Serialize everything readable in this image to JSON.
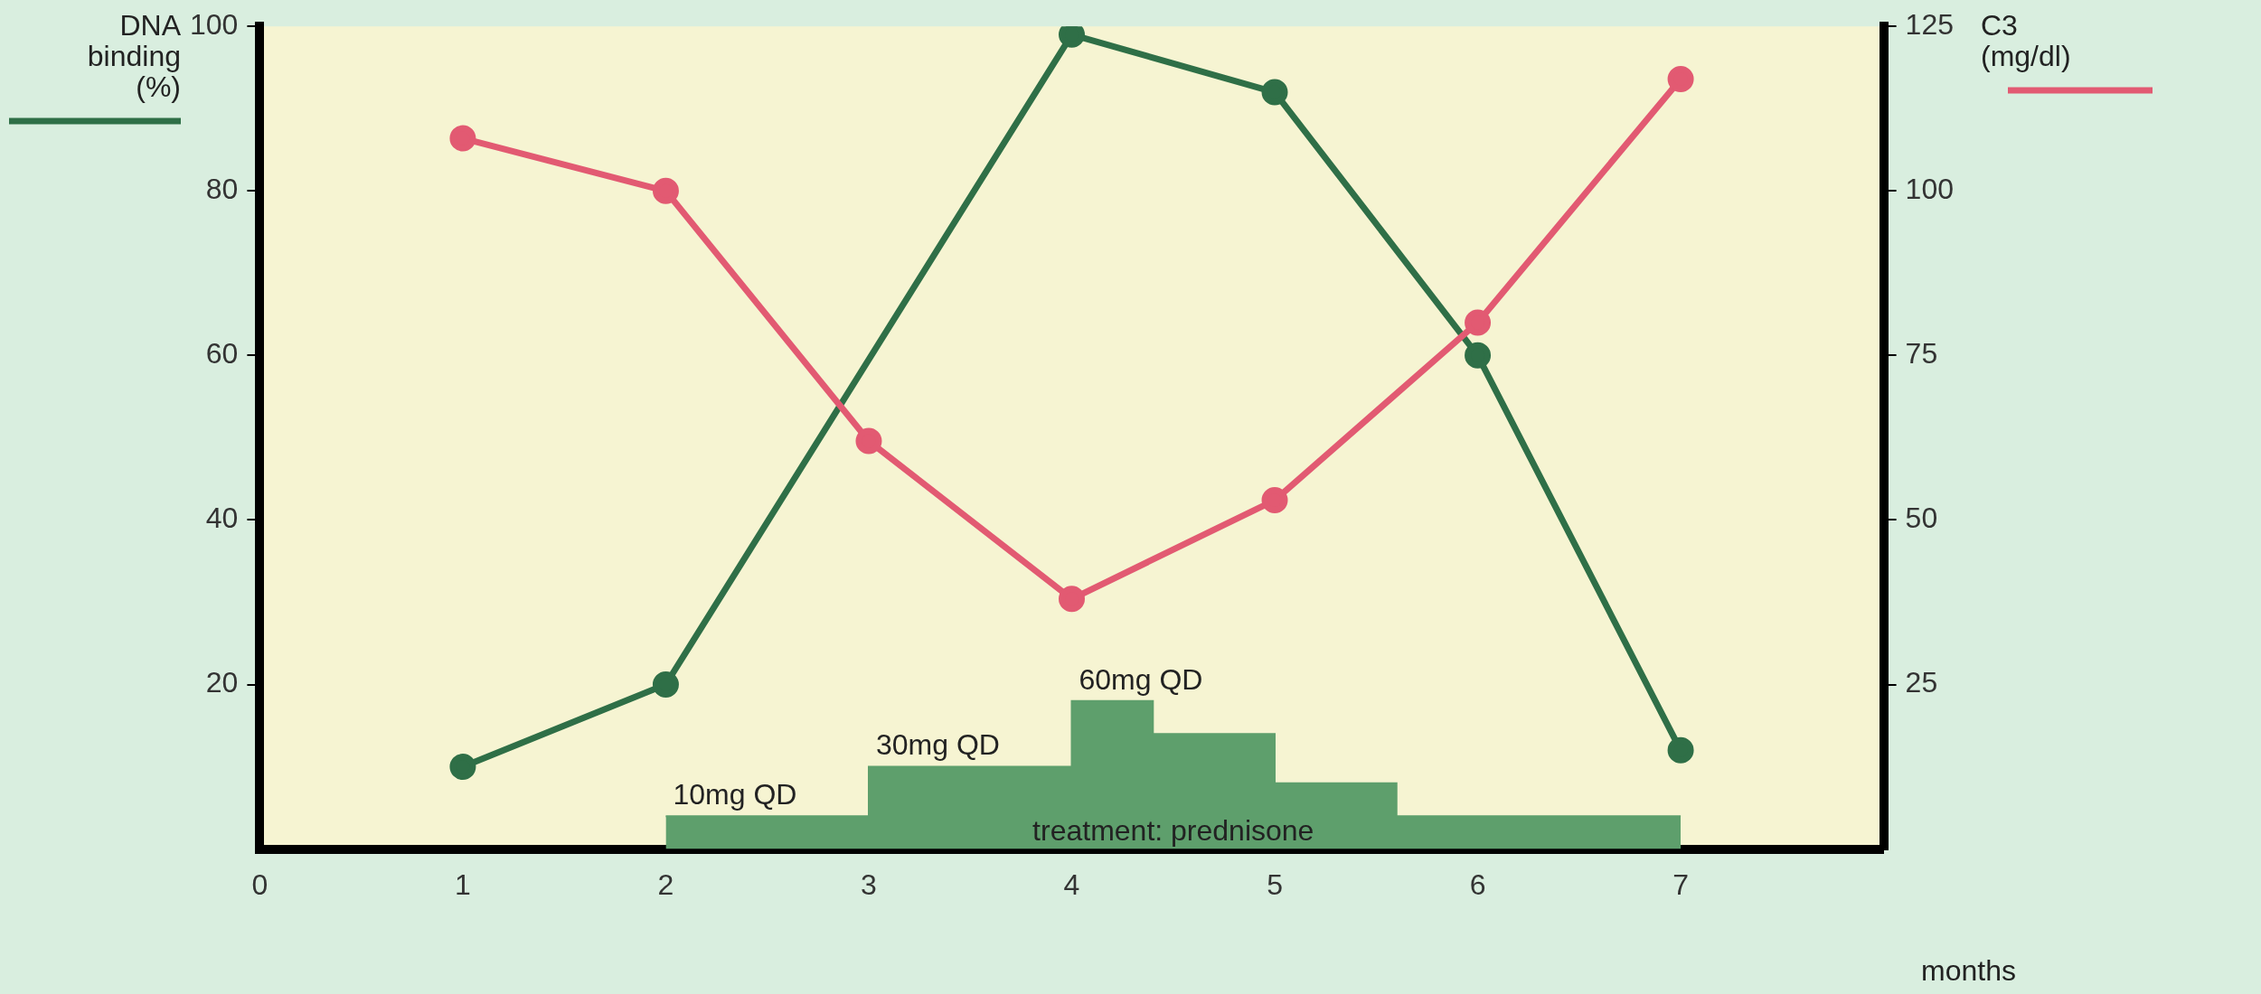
{
  "chart_data": {
    "type": "line",
    "xlabel": "months",
    "ylabel": "DNA binding (%)",
    "y2label": "C3 (mg/dl)",
    "x": [
      1,
      2,
      4,
      5,
      6,
      7
    ],
    "series": [
      {
        "name": "treatment: prednisone",
        "type": "area",
        "marker": "none",
        "color": "#5e9f6c",
        "x": [
          2,
          3,
          3,
          4,
          4,
          4.4,
          4.4,
          5,
          5,
          5.6,
          5.6,
          7
        ],
        "values": [
          4,
          4,
          10,
          10,
          18,
          18,
          14,
          14,
          8,
          8,
          4,
          4
        ]
      },
      {
        "color": "#2f6f47",
        "values": [
          10,
          20,
          99,
          92,
          60,
          12
        ]
      },
      {
        "color": "#e25a72",
        "axis": "y2",
        "x": [
          1,
          2,
          3,
          4,
          5,
          6,
          7
        ],
        "values": [
          108,
          100,
          62,
          38,
          53,
          80,
          117
        ]
      }
    ],
    "annotations": [
      {
        "text": "10mg QD",
        "x": 2,
        "y": 4
      },
      {
        "text": "30mg QD",
        "x": 3,
        "y": 10
      },
      {
        "text": "60mg QD",
        "x": 4,
        "y": 18
      }
    ],
    "xlim": [
      0,
      8
    ],
    "xticks": [
      0,
      1,
      2,
      3,
      4,
      5,
      6,
      7
    ],
    "ylim": [
      0,
      100
    ],
    "yticks": [
      20,
      40,
      60,
      80,
      100
    ],
    "y2lim": [
      0,
      125
    ],
    "y2ticks": [
      25,
      50,
      75,
      100,
      125
    ],
    "grid": false,
    "legend": false,
    "marker": "circle",
    "line_style": "solid"
  }
}
